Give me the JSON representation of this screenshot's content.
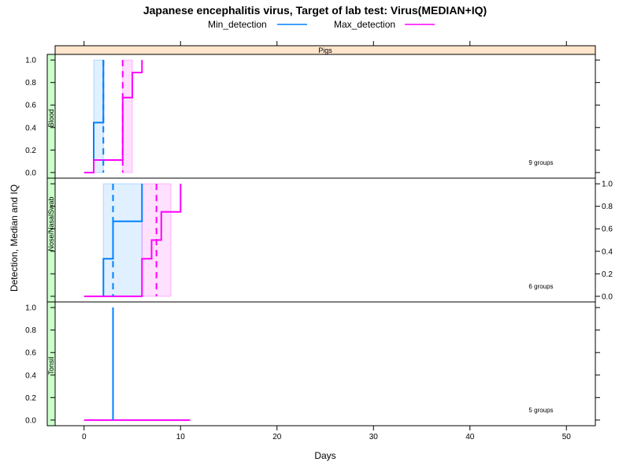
{
  "chart_data": {
    "type": "line",
    "title": "Japanese encephalitis virus, Target of lab test: Virus(MEDIAN+IQ)",
    "xlabel": "Days",
    "ylabel": "Detection, Median and IQ",
    "strip_top": "Pigs",
    "xlim": [
      -3,
      53
    ],
    "ylim": [
      -0.05,
      1.05
    ],
    "x_ticks": [
      0,
      10,
      20,
      30,
      40,
      50
    ],
    "y_ticks": [
      0.0,
      0.2,
      0.4,
      0.6,
      0.8,
      1.0
    ],
    "legend": [
      {
        "name": "Min_detection",
        "color": "#0080ff"
      },
      {
        "name": "Max_detection",
        "color": "#ff00ff"
      }
    ],
    "legend_position": "top",
    "panels": [
      {
        "name": "Blood",
        "note": "9 groups",
        "y_axis_side": "left",
        "series": [
          {
            "name": "Min_detection",
            "steps": [
              [
                1,
                0.0
              ],
              [
                1,
                0.444
              ],
              [
                2,
                0.444
              ],
              [
                2,
                1.0
              ]
            ],
            "median": 2,
            "iqr": [
              1,
              2
            ]
          },
          {
            "name": "Max_detection",
            "steps": [
              [
                0,
                0.0
              ],
              [
                1,
                0.0
              ],
              [
                1,
                0.111
              ],
              [
                4,
                0.111
              ],
              [
                4,
                0.667
              ],
              [
                5,
                0.667
              ],
              [
                5,
                0.889
              ],
              [
                6,
                0.889
              ],
              [
                6,
                1.0
              ]
            ],
            "median": 4,
            "iqr": [
              4,
              5
            ]
          }
        ]
      },
      {
        "name": "Nose/NasalSwab",
        "note": "6 groups",
        "y_axis_side": "right",
        "series": [
          {
            "name": "Min_detection",
            "steps": [
              [
                2,
                0.0
              ],
              [
                2,
                0.333
              ],
              [
                3,
                0.333
              ],
              [
                3,
                0.667
              ],
              [
                6,
                0.667
              ],
              [
                6,
                1.0
              ]
            ],
            "median": 3,
            "iqr": [
              2,
              6
            ]
          },
          {
            "name": "Max_detection",
            "steps": [
              [
                0,
                0.0
              ],
              [
                6,
                0.0
              ],
              [
                6,
                0.333
              ],
              [
                7,
                0.333
              ],
              [
                7,
                0.5
              ],
              [
                8,
                0.5
              ],
              [
                8,
                0.667
              ],
              [
                8,
                0.667
              ],
              [
                8,
                0.75
              ],
              [
                10,
                0.75
              ],
              [
                10,
                1.0
              ]
            ],
            "median": 7.5,
            "iqr": [
              6,
              9
            ]
          }
        ]
      },
      {
        "name": "Tonsil",
        "note": "5 groups",
        "y_axis_side": "left",
        "series": [
          {
            "name": "Min_detection",
            "steps": [
              [
                3,
                0.0
              ],
              [
                3,
                1.0
              ]
            ],
            "median": 3,
            "iqr": [
              3,
              3
            ]
          },
          {
            "name": "Max_detection",
            "steps": [
              [
                0,
                0.0
              ],
              [
                11,
                0.0
              ]
            ],
            "median": null,
            "iqr": null
          }
        ]
      }
    ]
  }
}
